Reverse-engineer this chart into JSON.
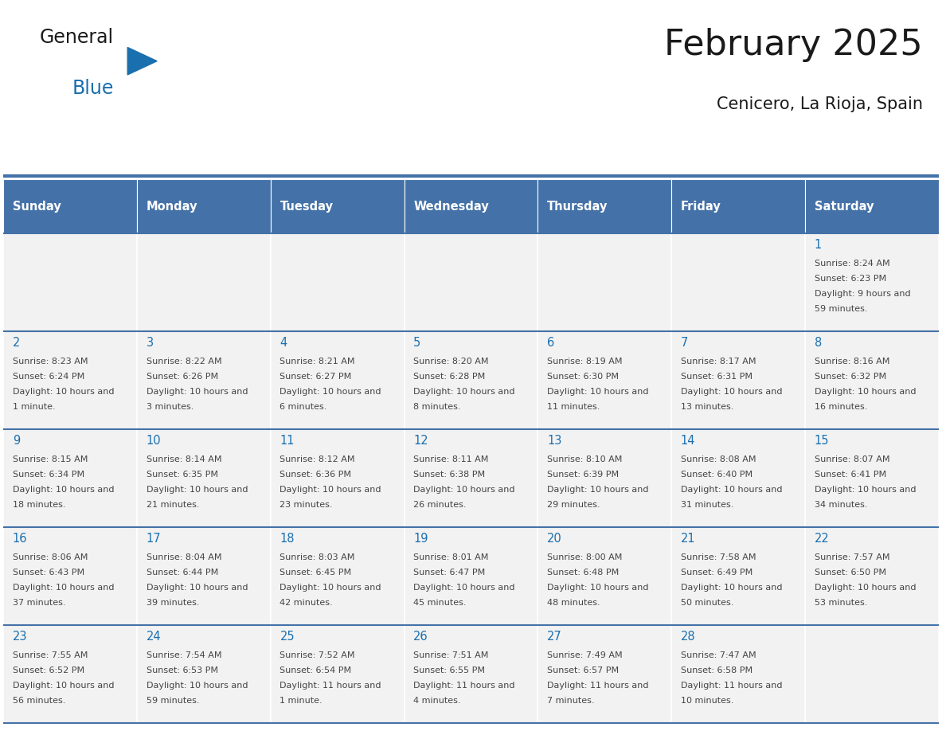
{
  "title": "February 2025",
  "subtitle": "Cenicero, La Rioja, Spain",
  "header_bg": "#4472A8",
  "header_text_color": "#FFFFFF",
  "cell_bg_light": "#F2F2F2",
  "cell_bg_white": "#FFFFFF",
  "day_names": [
    "Sunday",
    "Monday",
    "Tuesday",
    "Wednesday",
    "Thursday",
    "Friday",
    "Saturday"
  ],
  "title_color": "#1a1a1a",
  "subtitle_color": "#1a1a1a",
  "text_color": "#444444",
  "day_number_color": "#1a6faf",
  "divider_color": "#4472A8",
  "logo_color1": "#1a1a1a",
  "logo_color2": "#1a6faf",
  "logo_tri_color": "#1a6faf",
  "calendar_data": [
    [
      null,
      null,
      null,
      null,
      null,
      null,
      {
        "day": 1,
        "sunrise": "8:24 AM",
        "sunset": "6:23 PM",
        "daylight": "9 hours and 59 minutes."
      }
    ],
    [
      {
        "day": 2,
        "sunrise": "8:23 AM",
        "sunset": "6:24 PM",
        "daylight": "10 hours and 1 minute."
      },
      {
        "day": 3,
        "sunrise": "8:22 AM",
        "sunset": "6:26 PM",
        "daylight": "10 hours and 3 minutes."
      },
      {
        "day": 4,
        "sunrise": "8:21 AM",
        "sunset": "6:27 PM",
        "daylight": "10 hours and 6 minutes."
      },
      {
        "day": 5,
        "sunrise": "8:20 AM",
        "sunset": "6:28 PM",
        "daylight": "10 hours and 8 minutes."
      },
      {
        "day": 6,
        "sunrise": "8:19 AM",
        "sunset": "6:30 PM",
        "daylight": "10 hours and 11 minutes."
      },
      {
        "day": 7,
        "sunrise": "8:17 AM",
        "sunset": "6:31 PM",
        "daylight": "10 hours and 13 minutes."
      },
      {
        "day": 8,
        "sunrise": "8:16 AM",
        "sunset": "6:32 PM",
        "daylight": "10 hours and 16 minutes."
      }
    ],
    [
      {
        "day": 9,
        "sunrise": "8:15 AM",
        "sunset": "6:34 PM",
        "daylight": "10 hours and 18 minutes."
      },
      {
        "day": 10,
        "sunrise": "8:14 AM",
        "sunset": "6:35 PM",
        "daylight": "10 hours and 21 minutes."
      },
      {
        "day": 11,
        "sunrise": "8:12 AM",
        "sunset": "6:36 PM",
        "daylight": "10 hours and 23 minutes."
      },
      {
        "day": 12,
        "sunrise": "8:11 AM",
        "sunset": "6:38 PM",
        "daylight": "10 hours and 26 minutes."
      },
      {
        "day": 13,
        "sunrise": "8:10 AM",
        "sunset": "6:39 PM",
        "daylight": "10 hours and 29 minutes."
      },
      {
        "day": 14,
        "sunrise": "8:08 AM",
        "sunset": "6:40 PM",
        "daylight": "10 hours and 31 minutes."
      },
      {
        "day": 15,
        "sunrise": "8:07 AM",
        "sunset": "6:41 PM",
        "daylight": "10 hours and 34 minutes."
      }
    ],
    [
      {
        "day": 16,
        "sunrise": "8:06 AM",
        "sunset": "6:43 PM",
        "daylight": "10 hours and 37 minutes."
      },
      {
        "day": 17,
        "sunrise": "8:04 AM",
        "sunset": "6:44 PM",
        "daylight": "10 hours and 39 minutes."
      },
      {
        "day": 18,
        "sunrise": "8:03 AM",
        "sunset": "6:45 PM",
        "daylight": "10 hours and 42 minutes."
      },
      {
        "day": 19,
        "sunrise": "8:01 AM",
        "sunset": "6:47 PM",
        "daylight": "10 hours and 45 minutes."
      },
      {
        "day": 20,
        "sunrise": "8:00 AM",
        "sunset": "6:48 PM",
        "daylight": "10 hours and 48 minutes."
      },
      {
        "day": 21,
        "sunrise": "7:58 AM",
        "sunset": "6:49 PM",
        "daylight": "10 hours and 50 minutes."
      },
      {
        "day": 22,
        "sunrise": "7:57 AM",
        "sunset": "6:50 PM",
        "daylight": "10 hours and 53 minutes."
      }
    ],
    [
      {
        "day": 23,
        "sunrise": "7:55 AM",
        "sunset": "6:52 PM",
        "daylight": "10 hours and 56 minutes."
      },
      {
        "day": 24,
        "sunrise": "7:54 AM",
        "sunset": "6:53 PM",
        "daylight": "10 hours and 59 minutes."
      },
      {
        "day": 25,
        "sunrise": "7:52 AM",
        "sunset": "6:54 PM",
        "daylight": "11 hours and 1 minute."
      },
      {
        "day": 26,
        "sunrise": "7:51 AM",
        "sunset": "6:55 PM",
        "daylight": "11 hours and 4 minutes."
      },
      {
        "day": 27,
        "sunrise": "7:49 AM",
        "sunset": "6:57 PM",
        "daylight": "11 hours and 7 minutes."
      },
      {
        "day": 28,
        "sunrise": "7:47 AM",
        "sunset": "6:58 PM",
        "daylight": "11 hours and 10 minutes."
      },
      null
    ]
  ]
}
